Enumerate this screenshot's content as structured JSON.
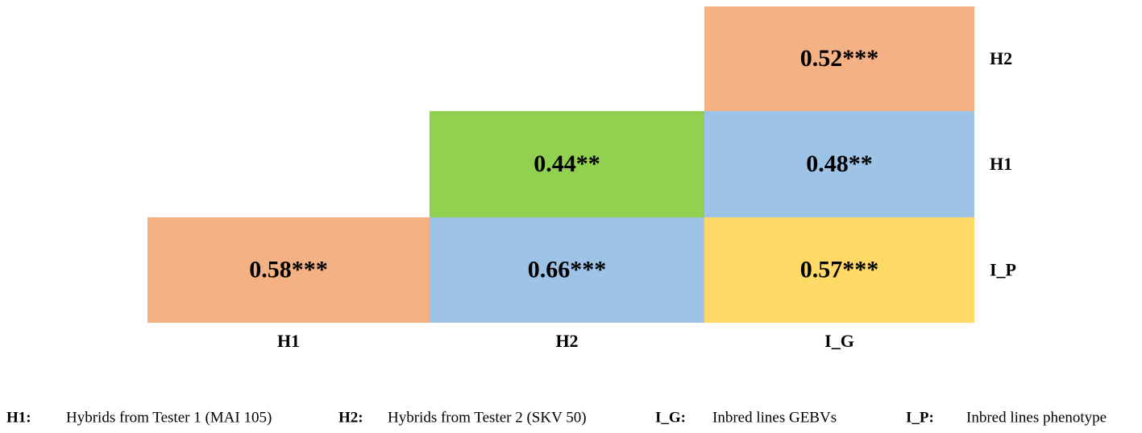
{
  "chart_data": {
    "type": "heatmap",
    "x_categories": [
      "H1",
      "H2",
      "I_G"
    ],
    "y_categories": [
      "H2",
      "H1",
      "I_P"
    ],
    "values": [
      [
        null,
        null,
        0.52
      ],
      [
        null,
        0.44,
        0.48
      ],
      [
        0.58,
        0.66,
        0.57
      ]
    ],
    "value_labels": [
      [
        null,
        null,
        "0.52***"
      ],
      [
        null,
        "0.44**",
        "0.48**"
      ],
      [
        "0.58***",
        "0.66***",
        "0.57***"
      ]
    ],
    "colors": [
      [
        null,
        null,
        "#f4b183"
      ],
      [
        null,
        "#92d050",
        "#9dc3e6"
      ],
      [
        "#f4b183",
        "#9dc3e6",
        "#ffd966"
      ]
    ],
    "legend": [
      {
        "key": "H1:",
        "text": "Hybrids from Tester 1 (MAI 105)"
      },
      {
        "key": "H2:",
        "text": "Hybrids from Tester 2 (SKV 50)"
      },
      {
        "key": "I_G:",
        "text": "Inbred lines GEBVs"
      },
      {
        "key": "I_P:",
        "text": "Inbred lines phenotype"
      }
    ]
  }
}
